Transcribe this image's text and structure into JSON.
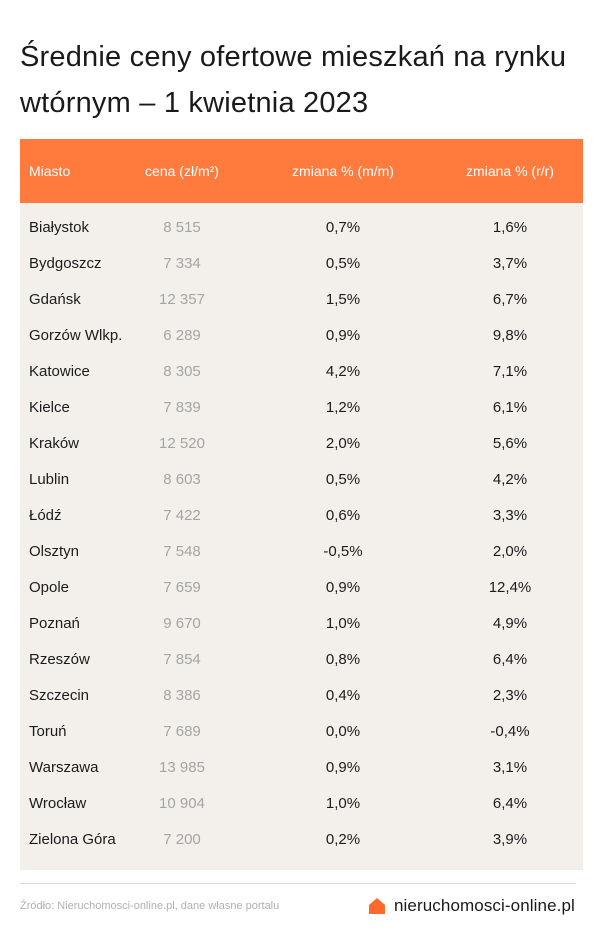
{
  "title": "Średnie ceny ofertowe mieszkań na rynku wtórnym – 1 kwietnia 2023",
  "colors": {
    "header_bg": "#ff7a3d",
    "table_bg": "#f3f0ec",
    "brand_icon": "#ff6a2a"
  },
  "chart_data": {
    "type": "table",
    "columns": [
      "Miasto",
      "cena (zł/m²)",
      "zmiana % (m/m)",
      "zmiana % (r/r)"
    ],
    "rows": [
      [
        "Białystok",
        "8 515",
        "0,7%",
        "1,6%"
      ],
      [
        "Bydgoszcz",
        "7 334",
        "0,5%",
        "3,7%"
      ],
      [
        "Gdańsk",
        "12 357",
        "1,5%",
        "6,7%"
      ],
      [
        "Gorzów Wlkp.",
        "6 289",
        "0,9%",
        "9,8%"
      ],
      [
        "Katowice",
        "8 305",
        "4,2%",
        "7,1%"
      ],
      [
        "Kielce",
        "7 839",
        "1,2%",
        "6,1%"
      ],
      [
        "Kraków",
        "12 520",
        "2,0%",
        "5,6%"
      ],
      [
        "Lublin",
        "8 603",
        "0,5%",
        "4,2%"
      ],
      [
        "Łódź",
        "7 422",
        "0,6%",
        "3,3%"
      ],
      [
        "Olsztyn",
        "7 548",
        "-0,5%",
        "2,0%"
      ],
      [
        "Opole",
        "7 659",
        "0,9%",
        "12,4%"
      ],
      [
        "Poznań",
        "9 670",
        "1,0%",
        "4,9%"
      ],
      [
        "Rzeszów",
        "7 854",
        "0,8%",
        "6,4%"
      ],
      [
        "Szczecin",
        "8 386",
        "0,4%",
        "2,3%"
      ],
      [
        "Toruń",
        "7 689",
        "0,0%",
        "-0,4%"
      ],
      [
        "Warszawa",
        "13 985",
        "0,9%",
        "3,1%"
      ],
      [
        "Wrocław",
        "10 904",
        "1,0%",
        "6,4%"
      ],
      [
        "Zielona Góra",
        "7 200",
        "0,2%",
        "3,9%"
      ]
    ]
  },
  "footer": {
    "source": "Źródło: Nieruchomosci-online.pl, dane własne portalu",
    "brand": "nieruchomosci-online.pl",
    "brand_icon": "house-icon"
  }
}
